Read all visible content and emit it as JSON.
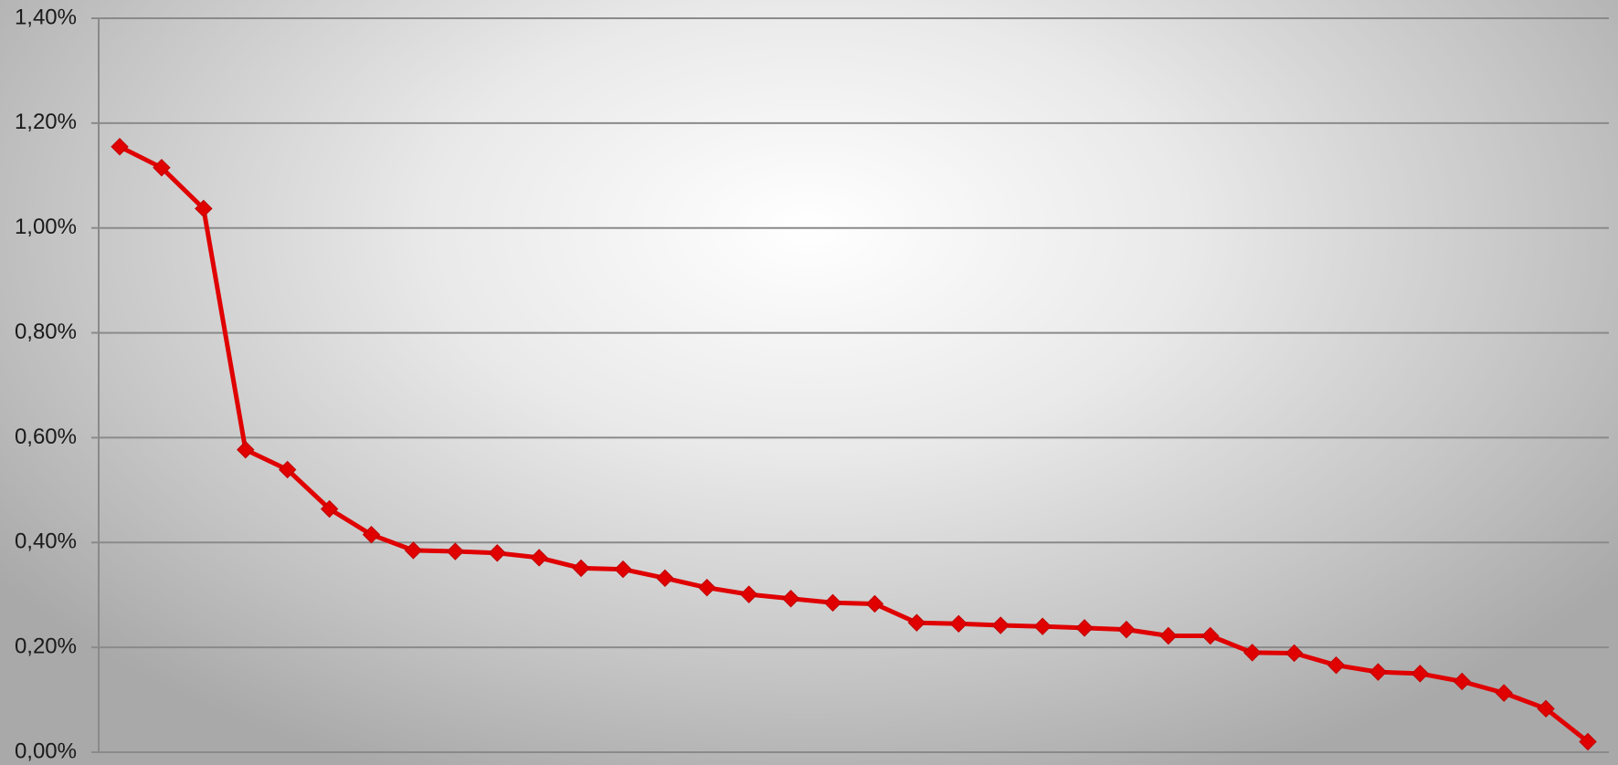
{
  "chart_data": {
    "type": "line",
    "title": "",
    "xlabel": "",
    "ylabel": "",
    "ylim": [
      0,
      1.4
    ],
    "y_ticks": [
      0,
      0.2,
      0.4,
      0.6,
      0.8,
      1.0,
      1.2,
      1.4
    ],
    "y_tick_labels": [
      "0,00%",
      "0,20%",
      "0,40%",
      "0,60%",
      "0,80%",
      "1,00%",
      "1,20%",
      "1,40%"
    ],
    "grid": true,
    "legend": "none",
    "series": [
      {
        "color": "#e00000",
        "marker": "diamond",
        "values": [
          1.155,
          1.115,
          1.037,
          0.577,
          0.539,
          0.464,
          0.415,
          0.385,
          0.383,
          0.38,
          0.371,
          0.351,
          0.349,
          0.332,
          0.314,
          0.301,
          0.293,
          0.285,
          0.283,
          0.247,
          0.245,
          0.242,
          0.24,
          0.237,
          0.234,
          0.222,
          0.222,
          0.19,
          0.189,
          0.166,
          0.153,
          0.15,
          0.135,
          0.113,
          0.083,
          0.02
        ]
      }
    ]
  }
}
